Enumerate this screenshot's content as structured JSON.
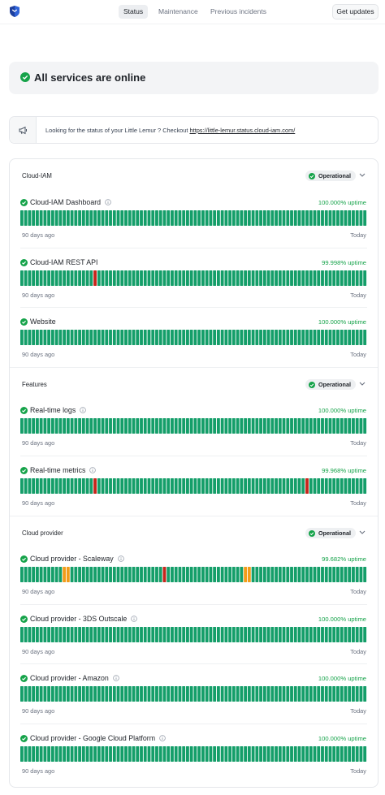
{
  "nav": {
    "tabs": [
      {
        "label": "Status",
        "active": true
      },
      {
        "label": "Maintenance",
        "active": false
      },
      {
        "label": "Previous incidents",
        "active": false
      }
    ],
    "cta_label": "Get updates",
    "logo_icon": "shield-logo-icon"
  },
  "banner": {
    "title": "All services are online",
    "icon": "check-circle-icon"
  },
  "notice": {
    "icon": "megaphone-icon",
    "text": "Looking for the status of your Little Lemur ? Checkout ",
    "link": "https://little-lemur.status.cloud-iam.com/"
  },
  "colors": {
    "up": "#149e69",
    "down": "#c7251c",
    "degraded": "#f29c1a",
    "operational_dot": "#16a34a"
  },
  "range": {
    "start_label": "90 days ago",
    "end_label": "Today",
    "days": 90
  },
  "groups": [
    {
      "name": "Cloud-IAM",
      "status": "Operational",
      "services": [
        {
          "name": "Cloud-IAM Dashboard",
          "info": true,
          "uptime": "100.000% uptime",
          "incidents": []
        },
        {
          "name": "Cloud-IAM REST API",
          "info": false,
          "uptime": "99.998% uptime",
          "incidents": [
            {
              "day": 19,
              "state": "down"
            }
          ]
        },
        {
          "name": "Website",
          "info": false,
          "uptime": "100.000% uptime",
          "incidents": []
        }
      ]
    },
    {
      "name": "Features",
      "status": "Operational",
      "services": [
        {
          "name": "Real-time logs",
          "info": true,
          "uptime": "100.000% uptime",
          "incidents": []
        },
        {
          "name": "Real-time metrics",
          "info": true,
          "uptime": "99.968% uptime",
          "incidents": [
            {
              "day": 19,
              "state": "down"
            },
            {
              "day": 74,
              "state": "down"
            }
          ]
        }
      ]
    },
    {
      "name": "Cloud provider",
      "status": "Operational",
      "services": [
        {
          "name": "Cloud provider - Scaleway",
          "info": true,
          "uptime": "99.682% uptime",
          "incidents": [
            {
              "day": 11,
              "state": "degraded"
            },
            {
              "day": 12,
              "state": "degraded"
            },
            {
              "day": 37,
              "state": "down"
            },
            {
              "day": 58,
              "state": "degraded"
            },
            {
              "day": 59,
              "state": "degraded"
            }
          ]
        },
        {
          "name": "Cloud provider - 3DS Outscale",
          "info": true,
          "uptime": "100.000% uptime",
          "incidents": []
        },
        {
          "name": "Cloud provider - Amazon",
          "info": true,
          "uptime": "100.000% uptime",
          "incidents": []
        },
        {
          "name": "Cloud provider - Google Cloud Platform",
          "info": true,
          "uptime": "100.000% uptime",
          "incidents": []
        }
      ]
    }
  ]
}
